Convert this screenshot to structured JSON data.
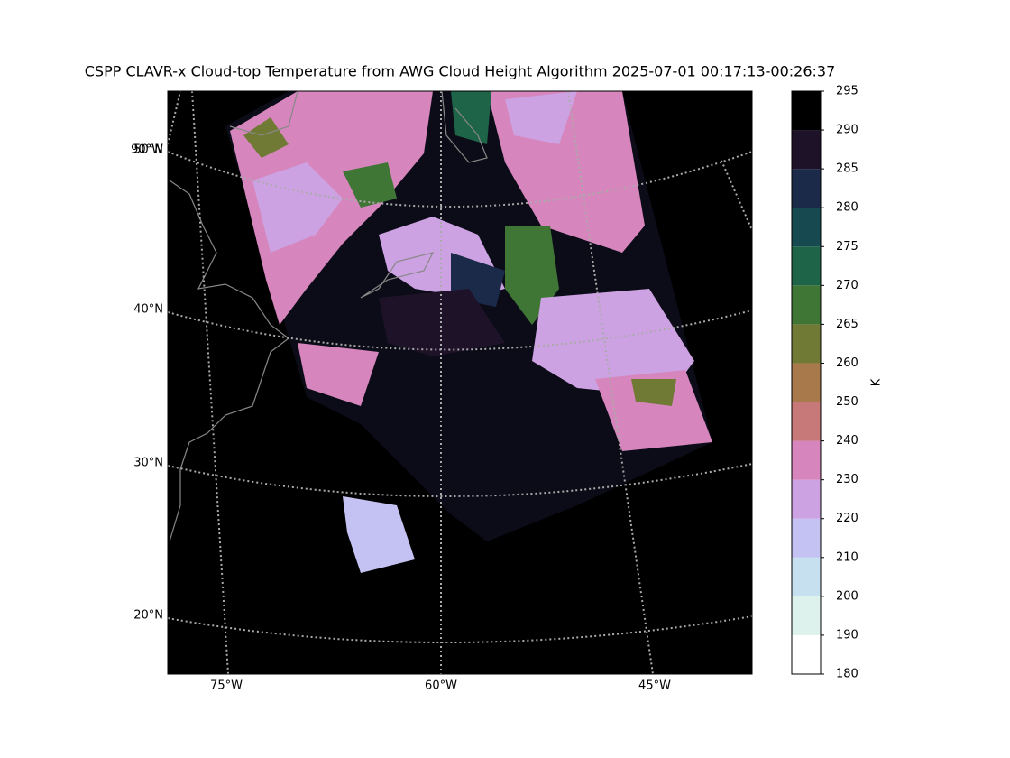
{
  "map": {
    "title": "CSPP CLAVR-x Cloud-top Temperature from AWG Cloud Height Algorithm 2025-07-01 00:17:13-00:26:37",
    "lat_labels": [
      "50°N",
      "40°N",
      "30°N",
      "20°N"
    ],
    "lon_labels": [
      "75°W",
      "60°W",
      "45°W"
    ],
    "extra_lon_label": "90°W",
    "colorbar": {
      "label": "K",
      "spacing": "uniform",
      "bounds": [
        180,
        190,
        200,
        210,
        220,
        230,
        240,
        250,
        260,
        265,
        270,
        275,
        280,
        285,
        290,
        295
      ],
      "colors": [
        "#ffffff",
        "#ddf2ec",
        "#c6e0f0",
        "#c4c2f2",
        "#cda2e2",
        "#d685bd",
        "#c77878",
        "#a87a4b",
        "#707a35",
        "#3f7636",
        "#1e6448",
        "#174a50",
        "#1c2a4a",
        "#1d1228",
        "#000000"
      ]
    }
  }
}
